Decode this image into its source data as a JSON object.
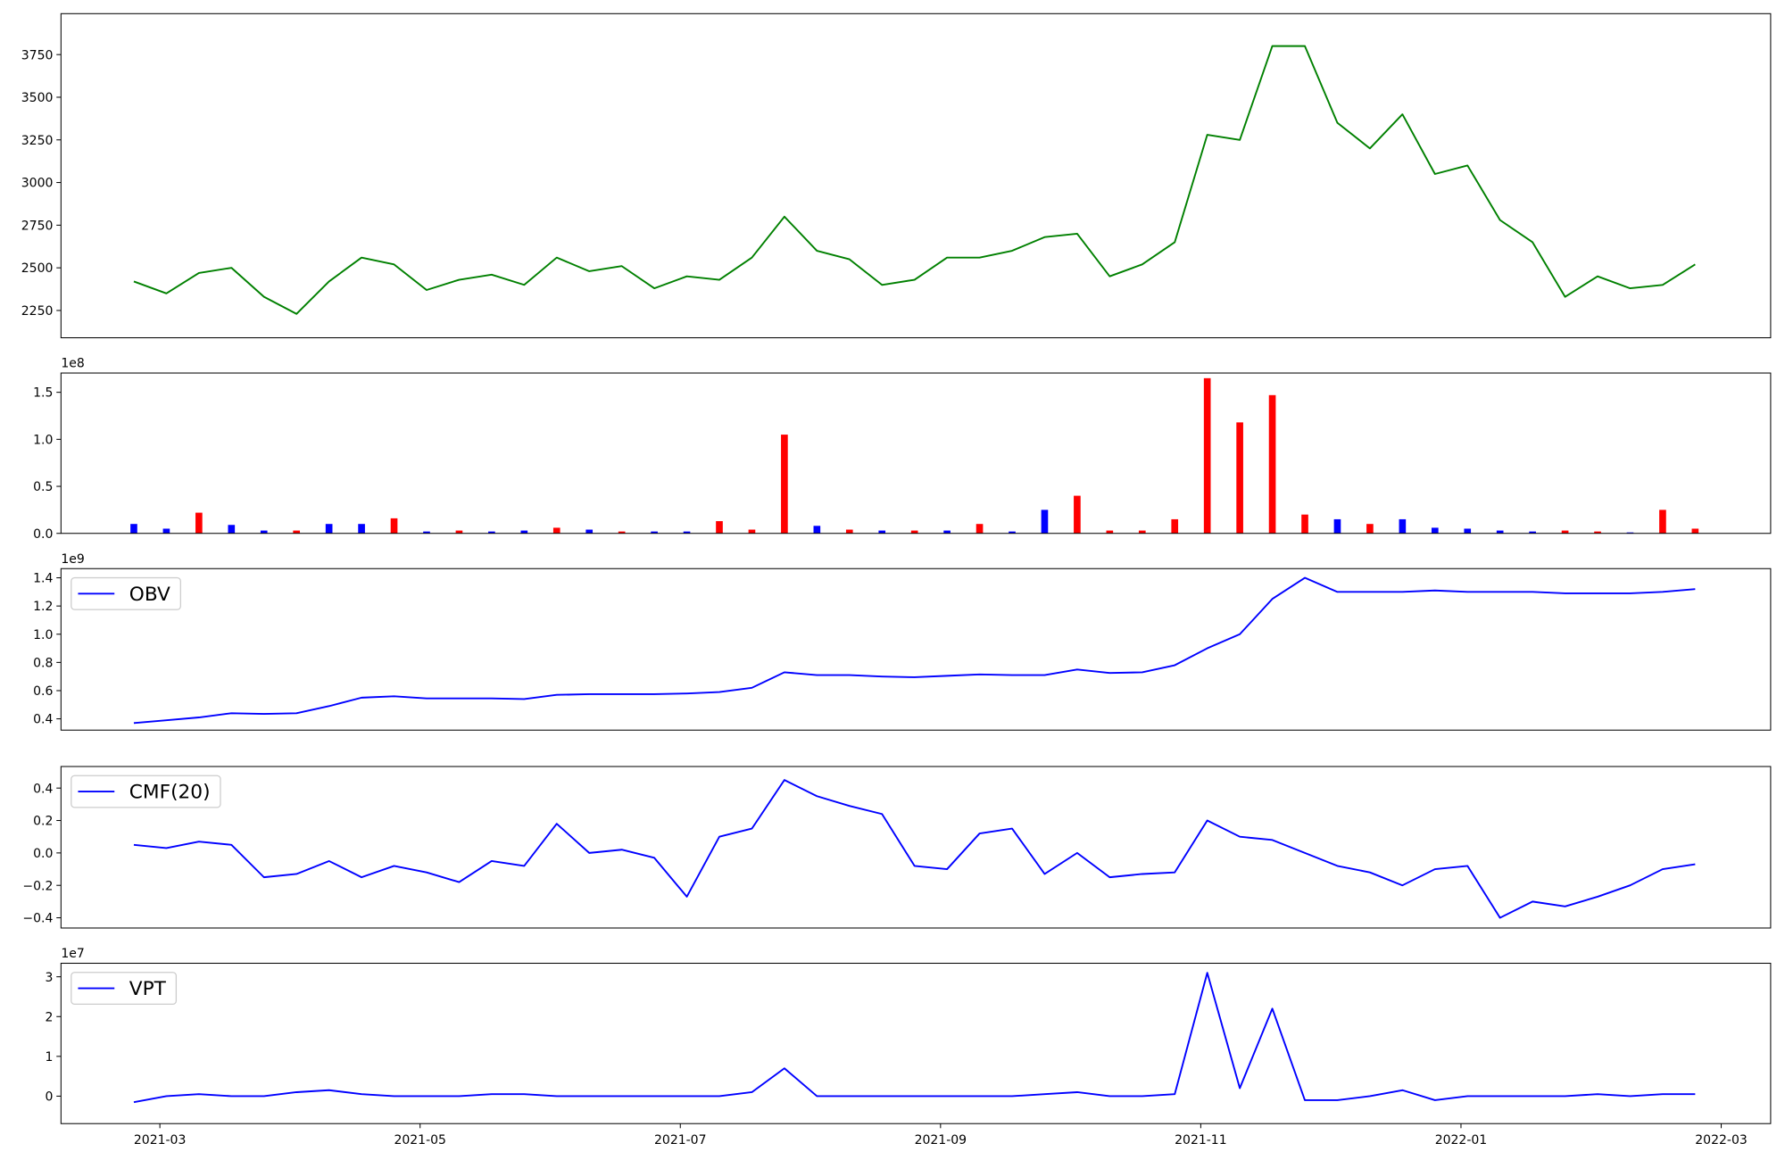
{
  "chart_data": [
    {
      "type": "line",
      "color": "green",
      "x": [
        1.8,
        2.05,
        2.3,
        2.55,
        2.8,
        3.05,
        3.3,
        3.55,
        3.8,
        4.05,
        4.3,
        4.55,
        4.8,
        5.05,
        5.3,
        5.55,
        5.8,
        6.05,
        6.3,
        6.55,
        6.8,
        7.05,
        7.3,
        7.55,
        7.8,
        8.05,
        8.3,
        8.55,
        8.8,
        9.05,
        9.3,
        9.55,
        9.8,
        10.05,
        10.3,
        10.55,
        10.8,
        11.05,
        11.3,
        11.55,
        11.8,
        12.05,
        12.3,
        12.55,
        12.8,
        13.05,
        13.3,
        13.55,
        13.8
      ],
      "values": [
        2420,
        2350,
        2470,
        2500,
        2330,
        2230,
        2420,
        2560,
        2520,
        2370,
        2430,
        2460,
        2400,
        2560,
        2480,
        2510,
        2380,
        2450,
        2430,
        2560,
        2800,
        2600,
        2550,
        2400,
        2430,
        2560,
        2560,
        2600,
        2680,
        2700,
        2450,
        2520,
        2650,
        3280,
        3250,
        3800,
        3800,
        3350,
        3200,
        3400,
        3050,
        3100,
        2780,
        2650,
        2330,
        2450,
        2380,
        2400,
        2520
      ],
      "xlim": [
        1.24,
        14.38
      ],
      "ylim": [
        2090,
        3990
      ],
      "yticks": [
        2250,
        2500,
        2750,
        3000,
        3250,
        3500,
        3750
      ]
    },
    {
      "type": "bar",
      "offset_label": "1e8",
      "x": [
        1.8,
        2.05,
        2.3,
        2.55,
        2.8,
        3.05,
        3.3,
        3.55,
        3.8,
        4.05,
        4.3,
        4.55,
        4.8,
        5.05,
        5.3,
        5.55,
        5.8,
        6.05,
        6.3,
        6.55,
        6.8,
        7.05,
        7.3,
        7.55,
        7.8,
        8.05,
        8.3,
        8.55,
        8.8,
        9.05,
        9.3,
        9.55,
        9.8,
        10.05,
        10.3,
        10.55,
        10.8,
        11.05,
        11.3,
        11.55,
        11.8,
        12.05,
        12.3,
        12.55,
        12.8,
        13.05,
        13.3,
        13.55,
        13.8
      ],
      "values": [
        10000000,
        5000000,
        22000000,
        9000000,
        3000000,
        3000000,
        10000000,
        10000000,
        16000000,
        2000000,
        3000000,
        2000000,
        3000000,
        6000000,
        4000000,
        2000000,
        2000000,
        2000000,
        13000000,
        4000000,
        105000000,
        8000000,
        4000000,
        3000000,
        3000000,
        3000000,
        10000000,
        2000000,
        25000000,
        40000000,
        3000000,
        3000000,
        15000000,
        165000000,
        118000000,
        147000000,
        20000000,
        15000000,
        10000000,
        15000000,
        6000000,
        5000000,
        3000000,
        2000000,
        3000000,
        2000000,
        1000000,
        25000000,
        5000000
      ],
      "colors": [
        "blue",
        "blue",
        "red",
        "blue",
        "blue",
        "red",
        "blue",
        "blue",
        "red",
        "blue",
        "red",
        "blue",
        "blue",
        "red",
        "blue",
        "red",
        "blue",
        "blue",
        "red",
        "red",
        "red",
        "blue",
        "red",
        "blue",
        "red",
        "blue",
        "red",
        "blue",
        "blue",
        "red",
        "red",
        "red",
        "red",
        "red",
        "red",
        "red",
        "red",
        "blue",
        "red",
        "blue",
        "blue",
        "blue",
        "blue",
        "blue",
        "red",
        "red",
        "blue",
        "red",
        "red"
      ],
      "xlim": [
        1.24,
        14.38
      ],
      "ylim": [
        0,
        170500000
      ],
      "yticks": [
        {
          "value": 0,
          "label": "0.0"
        },
        {
          "value": 50000000,
          "label": "0.5"
        },
        {
          "value": 100000000,
          "label": "1.0"
        },
        {
          "value": 150000000,
          "label": "1.5"
        }
      ]
    },
    {
      "type": "line",
      "offset_label": "1e9",
      "legend": "upper left",
      "x": [
        1.8,
        2.05,
        2.3,
        2.55,
        2.8,
        3.05,
        3.3,
        3.55,
        3.8,
        4.05,
        4.3,
        4.55,
        4.8,
        5.05,
        5.3,
        5.55,
        5.8,
        6.05,
        6.3,
        6.55,
        6.8,
        7.05,
        7.3,
        7.55,
        7.8,
        8.05,
        8.3,
        8.55,
        8.8,
        9.05,
        9.3,
        9.55,
        9.8,
        10.05,
        10.3,
        10.55,
        10.8,
        11.05,
        11.3,
        11.55,
        11.8,
        12.05,
        12.3,
        12.55,
        12.8,
        13.05,
        13.3,
        13.55,
        13.8
      ],
      "series": [
        {
          "name": "OBV",
          "color": "blue",
          "values": [
            370000000,
            390000000,
            410000000,
            440000000,
            435000000,
            440000000,
            490000000,
            550000000,
            560000000,
            545000000,
            545000000,
            545000000,
            540000000,
            570000000,
            575000000,
            575000000,
            575000000,
            580000000,
            590000000,
            620000000,
            730000000,
            710000000,
            710000000,
            700000000,
            695000000,
            705000000,
            715000000,
            710000000,
            710000000,
            750000000,
            725000000,
            730000000,
            780000000,
            900000000,
            1000000000,
            1250000000,
            1400000000,
            1300000000,
            1300000000,
            1300000000,
            1310000000,
            1300000000,
            1300000000,
            1300000000,
            1290000000,
            1290000000,
            1290000000,
            1300000000,
            1320000000
          ]
        }
      ],
      "xlim": [
        1.24,
        14.38
      ],
      "ylim": [
        320000000,
        1465000000
      ],
      "yticks": [
        {
          "value": 400000000,
          "label": "0.4"
        },
        {
          "value": 600000000,
          "label": "0.6"
        },
        {
          "value": 800000000,
          "label": "0.8"
        },
        {
          "value": 1000000000,
          "label": "1.0"
        },
        {
          "value": 1200000000,
          "label": "1.2"
        },
        {
          "value": 1400000000,
          "label": "1.4"
        }
      ]
    },
    {
      "type": "line",
      "legend": "upper left",
      "x": [
        1.8,
        2.05,
        2.3,
        2.55,
        2.8,
        3.05,
        3.3,
        3.55,
        3.8,
        4.05,
        4.3,
        4.55,
        4.8,
        5.05,
        5.3,
        5.55,
        5.8,
        6.05,
        6.3,
        6.55,
        6.8,
        7.05,
        7.3,
        7.55,
        7.8,
        8.05,
        8.3,
        8.55,
        8.8,
        9.05,
        9.3,
        9.55,
        9.8,
        10.05,
        10.3,
        10.55,
        10.8,
        11.05,
        11.3,
        11.55,
        11.8,
        12.05,
        12.3,
        12.55,
        12.8,
        13.05,
        13.3,
        13.55,
        13.8
      ],
      "series": [
        {
          "name": "CMF(20)",
          "color": "blue",
          "values": [
            0.05,
            0.03,
            0.07,
            0.05,
            -0.15,
            -0.13,
            -0.05,
            -0.15,
            -0.08,
            -0.12,
            -0.18,
            -0.05,
            -0.08,
            0.18,
            0.0,
            0.02,
            -0.03,
            -0.27,
            0.1,
            0.15,
            0.45,
            0.35,
            0.29,
            0.24,
            -0.08,
            -0.1,
            0.12,
            0.15,
            -0.13,
            0.0,
            -0.15,
            -0.13,
            -0.12,
            0.2,
            0.1,
            0.08,
            0.0,
            -0.08,
            -0.12,
            -0.2,
            -0.1,
            -0.08,
            -0.4,
            -0.3,
            -0.33,
            -0.27,
            -0.2,
            -0.1,
            -0.07
          ]
        }
      ],
      "xlim": [
        1.24,
        14.38
      ],
      "ylim": [
        -0.463,
        0.533
      ],
      "yticks": [
        {
          "value": -0.4,
          "label": "−0.4"
        },
        {
          "value": -0.2,
          "label": "−0.2"
        },
        {
          "value": 0,
          "label": "0.0"
        },
        {
          "value": 0.2,
          "label": "0.2"
        },
        {
          "value": 0.4,
          "label": "0.4"
        }
      ]
    },
    {
      "type": "line",
      "offset_label": "1e7",
      "legend": "upper left",
      "x": [
        1.8,
        2.05,
        2.3,
        2.55,
        2.8,
        3.05,
        3.3,
        3.55,
        3.8,
        4.05,
        4.3,
        4.55,
        4.8,
        5.05,
        5.3,
        5.55,
        5.8,
        6.05,
        6.3,
        6.55,
        6.8,
        7.05,
        7.3,
        7.55,
        7.8,
        8.05,
        8.3,
        8.55,
        8.8,
        9.05,
        9.3,
        9.55,
        9.8,
        10.05,
        10.3,
        10.55,
        10.8,
        11.05,
        11.3,
        11.55,
        11.8,
        12.05,
        12.3,
        12.55,
        12.8,
        13.05,
        13.3,
        13.55,
        13.8
      ],
      "series": [
        {
          "name": "VPT",
          "color": "blue",
          "values": [
            -1500000,
            0,
            500000,
            0,
            0,
            1000000,
            1500000,
            500000,
            0,
            0,
            0,
            500000,
            500000,
            0,
            0,
            0,
            0,
            0,
            0,
            1000000,
            7000000,
            0,
            0,
            0,
            0,
            0,
            0,
            0,
            500000,
            1000000,
            0,
            0,
            500000,
            31000000,
            2000000,
            22000000,
            -1000000,
            -1000000,
            0,
            1500000,
            -1000000,
            0,
            0,
            0,
            0,
            500000,
            0,
            500000,
            500000
          ]
        }
      ],
      "xlim": [
        1.24,
        14.38
      ],
      "ylim": [
        -6900000,
        33400000
      ],
      "yticks": [
        {
          "value": 0,
          "label": "0"
        },
        {
          "value": 10000000,
          "label": "1"
        },
        {
          "value": 20000000,
          "label": "2"
        },
        {
          "value": 30000000,
          "label": "3"
        }
      ],
      "xticks": [
        {
          "value": 2,
          "label": "2021-03"
        },
        {
          "value": 4,
          "label": "2021-05"
        },
        {
          "value": 6,
          "label": "2021-07"
        },
        {
          "value": 8,
          "label": "2021-09"
        },
        {
          "value": 10,
          "label": "2021-11"
        },
        {
          "value": 12,
          "label": "2022-01"
        },
        {
          "value": 14,
          "label": "2022-03"
        }
      ]
    }
  ]
}
